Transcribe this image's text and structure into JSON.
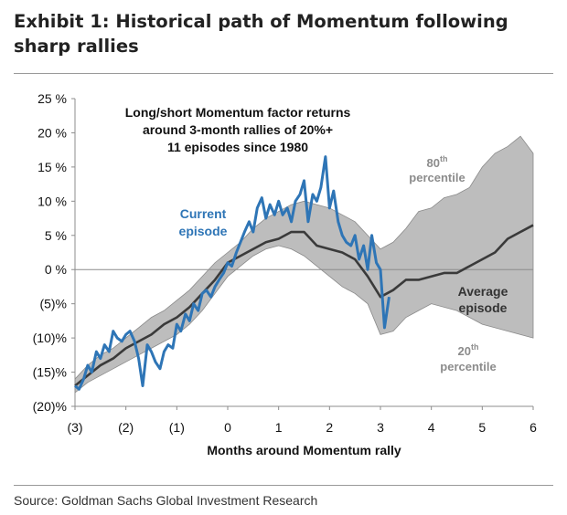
{
  "exhibit": {
    "title": "Exhibit 1: Historical path of Momentum following sharp rallies",
    "source": "Source: Goldman Sachs Global Investment Research"
  },
  "chart_data": {
    "type": "line",
    "title": "",
    "xlabel": "Months around Momentum rally",
    "ylabel": "",
    "xlim": [
      -3,
      6
    ],
    "ylim": [
      -20,
      25
    ],
    "grid": false,
    "x_ticks": [
      -3,
      -2,
      -1,
      0,
      1,
      2,
      3,
      4,
      5,
      6
    ],
    "x_tick_labels": [
      "(3)",
      "(2)",
      "(1)",
      "0",
      "1",
      "2",
      "3",
      "4",
      "5",
      "6"
    ],
    "y_ticks": [
      -20,
      -15,
      -10,
      -5,
      0,
      5,
      10,
      15,
      20,
      25
    ],
    "y_tick_labels": [
      "(20)%",
      "(15)%",
      "(10)%",
      "(5)%",
      "0 %",
      "5 %",
      "10 %",
      "15 %",
      "20 %",
      "25 %"
    ],
    "annotations": {
      "headline": [
        "Long/short Momentum factor returns",
        "around 3-month rallies of 20%+",
        "11 episodes since 1980"
      ],
      "current_label": [
        "Current",
        "episode"
      ],
      "average_label": [
        "Average",
        "episode"
      ],
      "p80_label": [
        "80",
        "th",
        "percentile"
      ],
      "p20_label": [
        "20",
        "th",
        "percentile"
      ]
    },
    "colors": {
      "band": "#bdbdbd",
      "band_edge": "#8a8a8a",
      "average": "#3a3a3a",
      "current": "#2e75b6"
    },
    "series": [
      {
        "name": "80th percentile",
        "x": [
          -3,
          -2.75,
          -2.5,
          -2.25,
          -2,
          -1.75,
          -1.5,
          -1.25,
          -1,
          -0.75,
          -0.5,
          -0.25,
          0,
          0.25,
          0.5,
          0.75,
          1,
          1.25,
          1.5,
          1.75,
          2,
          2.25,
          2.5,
          2.75,
          3,
          3.25,
          3.5,
          3.75,
          4,
          4.25,
          4.5,
          4.75,
          5,
          5.25,
          5.5,
          5.75,
          6
        ],
        "values": [
          -16,
          -14,
          -12.5,
          -11.5,
          -10,
          -8.5,
          -7,
          -6,
          -4.5,
          -3,
          -1,
          1,
          2.5,
          4,
          6,
          7.5,
          8.5,
          9.5,
          10,
          9.5,
          9,
          8,
          7,
          5,
          3,
          4,
          6,
          8.5,
          9,
          10.5,
          11,
          12,
          15,
          17,
          18,
          19.5,
          17
        ]
      },
      {
        "name": "20th percentile",
        "x": [
          -3,
          -2.75,
          -2.5,
          -2.25,
          -2,
          -1.75,
          -1.5,
          -1.25,
          -1,
          -0.75,
          -0.5,
          -0.25,
          0,
          0.25,
          0.5,
          0.75,
          1,
          1.25,
          1.5,
          1.75,
          2,
          2.25,
          2.5,
          2.75,
          3,
          3.25,
          3.5,
          3.75,
          4,
          4.25,
          4.5,
          4.75,
          5,
          5.25,
          5.5,
          5.75,
          6
        ],
        "values": [
          -18,
          -16.5,
          -15.5,
          -14.5,
          -13.5,
          -12.5,
          -11.5,
          -10.5,
          -9.5,
          -8,
          -6,
          -3.5,
          -1,
          0.5,
          2,
          3,
          3.5,
          3,
          2,
          0.5,
          -1,
          -2.5,
          -3.5,
          -5,
          -9.5,
          -9,
          -7,
          -6,
          -5,
          -5.5,
          -6,
          -7,
          -8,
          -8.5,
          -9,
          -9.5,
          -10
        ]
      },
      {
        "name": "Average episode",
        "x": [
          -3,
          -2.75,
          -2.5,
          -2.25,
          -2,
          -1.75,
          -1.5,
          -1.25,
          -1,
          -0.75,
          -0.5,
          -0.25,
          0,
          0.25,
          0.5,
          0.75,
          1,
          1.25,
          1.5,
          1.75,
          2,
          2.25,
          2.5,
          2.75,
          3,
          3.25,
          3.5,
          3.75,
          4,
          4.25,
          4.5,
          4.75,
          5,
          5.25,
          5.5,
          5.75,
          6
        ],
        "values": [
          -17,
          -15.5,
          -14,
          -13,
          -11.5,
          -10.5,
          -9.5,
          -8,
          -7,
          -5.5,
          -3.5,
          -1.5,
          1,
          2,
          3,
          4,
          4.5,
          5.5,
          5.5,
          3.5,
          3,
          2.5,
          1.5,
          -1,
          -4,
          -3,
          -1.5,
          -1.5,
          -1,
          -0.5,
          -0.5,
          0.5,
          1.5,
          2.5,
          4.5,
          5.5,
          6.5
        ]
      },
      {
        "name": "Current episode",
        "x": [
          -3,
          -2.92,
          -2.83,
          -2.75,
          -2.67,
          -2.58,
          -2.5,
          -2.42,
          -2.33,
          -2.25,
          -2.17,
          -2.08,
          -2,
          -1.92,
          -1.83,
          -1.75,
          -1.67,
          -1.58,
          -1.5,
          -1.42,
          -1.33,
          -1.25,
          -1.17,
          -1.08,
          -1,
          -0.92,
          -0.83,
          -0.75,
          -0.67,
          -0.58,
          -0.5,
          -0.42,
          -0.33,
          -0.25,
          -0.17,
          -0.08,
          0,
          0.08,
          0.17,
          0.25,
          0.33,
          0.42,
          0.5,
          0.58,
          0.67,
          0.75,
          0.83,
          0.92,
          1,
          1.08,
          1.17,
          1.25,
          1.33,
          1.42,
          1.5,
          1.58,
          1.67,
          1.75,
          1.83,
          1.92,
          2,
          2.08,
          2.17,
          2.25,
          2.33,
          2.42,
          2.5,
          2.58,
          2.67,
          2.75,
          2.83,
          2.92,
          3,
          3.08,
          3.17
        ],
        "values": [
          -17,
          -17.5,
          -16,
          -14,
          -15,
          -12,
          -13,
          -11,
          -12,
          -9,
          -10,
          -10.5,
          -9.5,
          -9,
          -10.5,
          -13,
          -17,
          -11,
          -12,
          -13.5,
          -14.5,
          -12,
          -11,
          -11.5,
          -8,
          -9,
          -6.5,
          -7.5,
          -5,
          -6,
          -3.5,
          -3,
          -4,
          -2.5,
          -1.5,
          -0.5,
          1,
          0.5,
          2.5,
          4,
          5.5,
          7,
          5.5,
          9,
          10.5,
          7.5,
          9.5,
          8,
          10,
          8,
          9,
          7,
          10,
          11,
          13,
          7,
          11,
          10,
          12,
          16.5,
          9,
          11.5,
          7,
          5,
          4,
          3.5,
          5,
          1.5,
          3.5,
          0,
          5,
          1,
          0,
          -8.5,
          -4
        ]
      }
    ]
  }
}
